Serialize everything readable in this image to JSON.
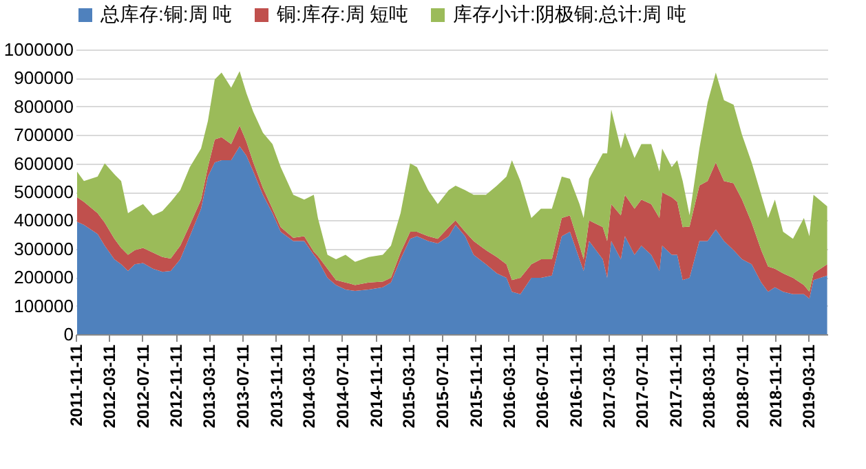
{
  "chart_data": {
    "type": "area",
    "stacked": true,
    "grid": "y",
    "legend": "top",
    "x": [
      "2011-11-16",
      "2011-12-11",
      "2012-01-30",
      "2012-02-25",
      "2012-03-31",
      "2012-04-25",
      "2012-05-20",
      "2012-06-14",
      "2012-07-14",
      "2012-08-19",
      "2012-09-23",
      "2012-10-23",
      "2012-11-27",
      "2013-01-01",
      "2013-02-11",
      "2013-03-08",
      "2013-04-02",
      "2013-04-27",
      "2013-06-01",
      "2013-07-02",
      "2013-07-27",
      "2013-08-21",
      "2013-09-25",
      "2013-10-30",
      "2013-11-29",
      "2014-01-14",
      "2014-02-23",
      "2014-03-30",
      "2014-04-14",
      "2014-05-19",
      "2014-06-19",
      "2014-07-24",
      "2014-08-28",
      "2014-10-17",
      "2014-12-07",
      "2015-01-06",
      "2015-02-10",
      "2015-03-17",
      "2015-04-11",
      "2015-05-22",
      "2015-06-26",
      "2015-08-05",
      "2015-08-30",
      "2015-10-04",
      "2015-11-04",
      "2015-12-19",
      "2016-01-28",
      "2016-03-03",
      "2016-03-23",
      "2016-04-23",
      "2016-06-02",
      "2016-07-07",
      "2016-08-16",
      "2016-09-21",
      "2016-10-21",
      "2016-11-25",
      "2016-12-10",
      "2016-12-30",
      "2017-02-18",
      "2017-03-06",
      "2017-03-21",
      "2017-04-25",
      "2017-05-10",
      "2017-06-14",
      "2017-07-09",
      "2017-08-14",
      "2017-09-13",
      "2017-09-23",
      "2017-10-28",
      "2017-11-17",
      "2017-12-07",
      "2018-01-01",
      "2018-02-06",
      "2018-03-08",
      "2018-04-07",
      "2018-05-07",
      "2018-06-11",
      "2018-07-12",
      "2018-08-16",
      "2018-09-20",
      "2018-10-15",
      "2018-11-09",
      "2018-12-09",
      "2019-01-14",
      "2019-02-23",
      "2019-03-15",
      "2019-03-30",
      "2019-05-19"
    ],
    "series": [
      {
        "name": "总库存:铜:周 吨",
        "color": "#4f81bd",
        "values": [
          395000,
          384000,
          352000,
          311000,
          263000,
          246000,
          222000,
          246000,
          250000,
          230000,
          219000,
          222000,
          263000,
          344000,
          441000,
          554000,
          603000,
          611000,
          611000,
          660000,
          627000,
          571000,
          490000,
          425000,
          360000,
          327000,
          327000,
          279000,
          260000,
          198000,
          173000,
          157000,
          152000,
          157000,
          165000,
          182000,
          263000,
          335000,
          344000,
          327000,
          319000,
          344000,
          384000,
          344000,
          279000,
          246000,
          214000,
          198000,
          149000,
          141000,
          198000,
          198000,
          206000,
          344000,
          360000,
          263000,
          222000,
          327000,
          263000,
          198000,
          327000,
          263000,
          344000,
          279000,
          311000,
          279000,
          222000,
          311000,
          279000,
          279000,
          190000,
          198000,
          327000,
          327000,
          368000,
          327000,
          295000,
          263000,
          246000,
          182000,
          149000,
          165000,
          149000,
          141000,
          141000,
          125000,
          190000,
          206000
        ]
      },
      {
        "name": "铜:库存:周 短吨",
        "color": "#c0504d",
        "values": [
          86000,
          81000,
          73000,
          81000,
          73000,
          57000,
          57000,
          49000,
          53000,
          57000,
          52000,
          44000,
          48000,
          40000,
          32000,
          33000,
          81000,
          81000,
          57000,
          73000,
          49000,
          32000,
          24000,
          16000,
          16000,
          12000,
          17000,
          11000,
          15000,
          32000,
          17000,
          25000,
          21000,
          25000,
          20000,
          16000,
          24000,
          25000,
          16000,
          17000,
          16000,
          32000,
          16000,
          16000,
          48000,
          49000,
          57000,
          48000,
          41000,
          57000,
          48000,
          65000,
          57000,
          64000,
          57000,
          48000,
          41000,
          73000,
          113000,
          129000,
          130000,
          154000,
          146000,
          162000,
          162000,
          178000,
          186000,
          187000,
          202000,
          186000,
          186000,
          180000,
          195000,
          211000,
          235000,
          211000,
          235000,
          210000,
          146000,
          113000,
          89000,
          65000,
          65000,
          57000,
          32000,
          24000,
          24000,
          40000
        ]
      },
      {
        "name": "库存小计:阴极铜:总计:周 吨",
        "color": "#9bbb59",
        "values": [
          90000,
          73000,
          129000,
          208000,
          226000,
          235000,
          146000,
          146000,
          154000,
          130000,
          162000,
          199000,
          195000,
          203000,
          179000,
          162000,
          211000,
          227000,
          198000,
          191000,
          170000,
          178000,
          194000,
          227000,
          211000,
          151000,
          129000,
          200000,
          133000,
          49000,
          73000,
          97000,
          81000,
          89000,
          94000,
          113000,
          138000,
          240000,
          227000,
          162000,
          122000,
          130000,
          122000,
          146000,
          163000,
          195000,
          251000,
          308000,
          421000,
          340000,
          162000,
          178000,
          178000,
          146000,
          129000,
          146000,
          145000,
          146000,
          259000,
          308000,
          332000,
          235000,
          218000,
          178000,
          195000,
          211000,
          163000,
          154000,
          106000,
          146000,
          162000,
          40000,
          130000,
          276000,
          316000,
          284000,
          276000,
          227000,
          211000,
          195000,
          170000,
          243000,
          146000,
          137000,
          235000,
          195000,
          276000,
          203000
        ]
      }
    ],
    "xlim": [
      "2011-11-11",
      "2019-05-20"
    ],
    "xticks": [
      "2011-11-11",
      "2012-03-11",
      "2012-07-11",
      "2012-11-11",
      "2013-03-11",
      "2013-07-11",
      "2013-11-11",
      "2014-03-11",
      "2014-07-11",
      "2014-11-11",
      "2015-03-11",
      "2015-07-11",
      "2015-11-11",
      "2016-03-11",
      "2016-07-11",
      "2016-11-11",
      "2017-03-11",
      "2017-07-11",
      "2017-11-11",
      "2018-03-11",
      "2018-07-11",
      "2018-11-11",
      "2019-03-11"
    ],
    "ylim": [
      0,
      1000000
    ],
    "yticks": [
      0,
      100000,
      200000,
      300000,
      400000,
      500000,
      600000,
      700000,
      800000,
      900000,
      1000000
    ]
  }
}
